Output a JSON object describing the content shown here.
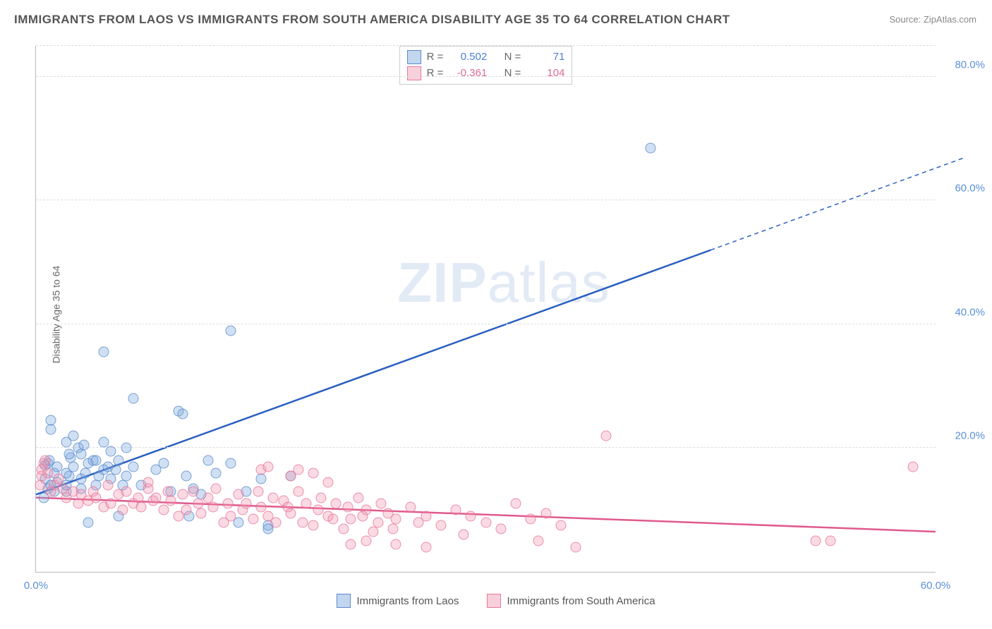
{
  "title": "IMMIGRANTS FROM LAOS VS IMMIGRANTS FROM SOUTH AMERICA DISABILITY AGE 35 TO 64 CORRELATION CHART",
  "source_prefix": "Source: ",
  "source_name": "ZipAtlas.com",
  "y_axis_label": "Disability Age 35 to 64",
  "watermark_a": "ZIP",
  "watermark_b": "atlas",
  "chart": {
    "type": "scatter",
    "xlim": [
      0,
      60
    ],
    "ylim": [
      0,
      85
    ],
    "y_ticks": [
      20,
      40,
      60,
      80
    ],
    "y_tick_labels": [
      "20.0%",
      "40.0%",
      "60.0%",
      "80.0%"
    ],
    "x_ticks": [
      0,
      60
    ],
    "x_tick_labels": [
      "0.0%",
      "60.0%"
    ],
    "background_color": "#ffffff",
    "grid_color": "#dddddd",
    "axis_color": "#bbbbbb",
    "tick_label_color": "#5b8fd6",
    "point_radius": 6.5,
    "series": [
      {
        "name": "Immigrants from Laos",
        "color_fill": "rgba(120,165,220,0.35)",
        "color_stroke": "rgba(80,130,200,0.7)",
        "trend_color": "#2a5fc0",
        "R": 0.502,
        "N": 71,
        "trend": {
          "x1": 0,
          "y1": 12.5,
          "x2": 45,
          "y2": 52,
          "dash_x1": 45,
          "dash_y1": 52,
          "dash_x2": 62,
          "dash_y2": 67
        },
        "points": [
          [
            0.5,
            12
          ],
          [
            0.8,
            13.5
          ],
          [
            0.6,
            15
          ],
          [
            0.6,
            17.2
          ],
          [
            0.8,
            17.5
          ],
          [
            0.9,
            18
          ],
          [
            1,
            14
          ],
          [
            1.2,
            13
          ],
          [
            1.4,
            14.5
          ],
          [
            1.2,
            16
          ],
          [
            1.4,
            17
          ],
          [
            1,
            23
          ],
          [
            1,
            24.5
          ],
          [
            2,
            13
          ],
          [
            2,
            14
          ],
          [
            2.2,
            15.5
          ],
          [
            2,
            16
          ],
          [
            2.5,
            17
          ],
          [
            2.3,
            18.5
          ],
          [
            2.2,
            19
          ],
          [
            2.8,
            20
          ],
          [
            2,
            21
          ],
          [
            2.5,
            22
          ],
          [
            3,
            13.5
          ],
          [
            3,
            15
          ],
          [
            3.3,
            16
          ],
          [
            3.5,
            17.5
          ],
          [
            3,
            19
          ],
          [
            3.2,
            20.5
          ],
          [
            3.8,
            18
          ],
          [
            3.5,
            8
          ],
          [
            4,
            14
          ],
          [
            4.2,
            15.5
          ],
          [
            4.5,
            16.5
          ],
          [
            4,
            18
          ],
          [
            4.8,
            17
          ],
          [
            4.5,
            21
          ],
          [
            4.5,
            35.5
          ],
          [
            5,
            15
          ],
          [
            5.3,
            16.5
          ],
          [
            5.5,
            18
          ],
          [
            5,
            19.5
          ],
          [
            5.8,
            14
          ],
          [
            5.5,
            9
          ],
          [
            6,
            15.5
          ],
          [
            6.5,
            17
          ],
          [
            6,
            20
          ],
          [
            6.5,
            28
          ],
          [
            7,
            14
          ],
          [
            8,
            16.5
          ],
          [
            8.5,
            17.5
          ],
          [
            9,
            13
          ],
          [
            9.5,
            26
          ],
          [
            9.8,
            25.5
          ],
          [
            10,
            15.5
          ],
          [
            10.5,
            13.5
          ],
          [
            10.2,
            9
          ],
          [
            11,
            12.5
          ],
          [
            11.5,
            18
          ],
          [
            12,
            16
          ],
          [
            13,
            17.5
          ],
          [
            13.5,
            8
          ],
          [
            14,
            13
          ],
          [
            15,
            15
          ],
          [
            15.5,
            7.5
          ],
          [
            15.5,
            7
          ],
          [
            17,
            15.5
          ],
          [
            13,
            39
          ],
          [
            41,
            68.5
          ]
        ]
      },
      {
        "name": "Immigrants from South America",
        "color_fill": "rgba(240,150,175,0.35)",
        "color_stroke": "rgba(230,110,150,0.7)",
        "trend_color": "#e05a8d",
        "R": -0.361,
        "N": 104,
        "trend": {
          "x1": 0,
          "y1": 12,
          "x2": 60,
          "y2": 6.5
        },
        "points": [
          [
            0.3,
            14
          ],
          [
            0.4,
            15.5
          ],
          [
            0.4,
            16.5
          ],
          [
            0.5,
            17.5
          ],
          [
            0.6,
            18
          ],
          [
            0.8,
            16
          ],
          [
            1,
            13
          ],
          [
            1.2,
            14
          ],
          [
            1.5,
            15
          ],
          [
            1.8,
            13.5
          ],
          [
            2,
            12
          ],
          [
            2.5,
            13
          ],
          [
            2.8,
            11
          ],
          [
            3,
            12.5
          ],
          [
            3.5,
            11.5
          ],
          [
            3.8,
            13
          ],
          [
            4,
            12
          ],
          [
            4.5,
            10.5
          ],
          [
            4.8,
            14
          ],
          [
            5,
            11
          ],
          [
            5.5,
            12.5
          ],
          [
            5.8,
            10
          ],
          [
            6,
            13
          ],
          [
            6.5,
            11
          ],
          [
            6.8,
            12
          ],
          [
            7,
            10.5
          ],
          [
            7.5,
            13.5
          ],
          [
            7.8,
            11.5
          ],
          [
            7.5,
            14.5
          ],
          [
            8,
            12
          ],
          [
            8.5,
            10
          ],
          [
            8.8,
            13
          ],
          [
            9,
            11.5
          ],
          [
            9.5,
            9
          ],
          [
            9.8,
            12.5
          ],
          [
            10,
            10
          ],
          [
            10.5,
            13
          ],
          [
            10.8,
            11
          ],
          [
            11,
            9.5
          ],
          [
            11.5,
            12
          ],
          [
            11.8,
            10.5
          ],
          [
            12,
            13.5
          ],
          [
            12.5,
            8
          ],
          [
            12.8,
            11
          ],
          [
            13,
            9
          ],
          [
            13.5,
            12.5
          ],
          [
            13.8,
            10
          ],
          [
            15,
            16.5
          ],
          [
            14,
            11
          ],
          [
            14.5,
            8.5
          ],
          [
            14.8,
            13
          ],
          [
            15,
            10.5
          ],
          [
            15.5,
            9
          ],
          [
            15.8,
            12
          ],
          [
            15.5,
            17
          ],
          [
            16,
            8
          ],
          [
            16.5,
            11.5
          ],
          [
            16.8,
            10.5
          ],
          [
            17,
            15.5
          ],
          [
            17.5,
            16.5
          ],
          [
            17,
            9.5
          ],
          [
            17.5,
            13
          ],
          [
            17.8,
            8
          ],
          [
            18,
            11
          ],
          [
            18.5,
            7.5
          ],
          [
            18.8,
            10
          ],
          [
            18.5,
            16
          ],
          [
            19,
            12
          ],
          [
            19.5,
            9
          ],
          [
            19.8,
            8.5
          ],
          [
            19.5,
            14.5
          ],
          [
            20,
            11
          ],
          [
            20.5,
            7
          ],
          [
            20.8,
            10.5
          ],
          [
            21,
            8.5
          ],
          [
            21.5,
            12
          ],
          [
            21.8,
            9
          ],
          [
            21,
            4.5
          ],
          [
            22,
            10
          ],
          [
            22.5,
            6.5
          ],
          [
            22.8,
            8
          ],
          [
            22,
            5
          ],
          [
            23,
            11
          ],
          [
            23.5,
            9.5
          ],
          [
            23.8,
            7
          ],
          [
            24,
            4.5
          ],
          [
            24,
            8.5
          ],
          [
            26,
            4
          ],
          [
            25,
            10.5
          ],
          [
            25.5,
            8
          ],
          [
            26,
            9
          ],
          [
            27,
            7.5
          ],
          [
            28,
            10
          ],
          [
            28.5,
            6
          ],
          [
            29,
            9
          ],
          [
            30,
            8
          ],
          [
            31,
            7
          ],
          [
            32,
            11
          ],
          [
            33,
            8.5
          ],
          [
            33.5,
            5
          ],
          [
            34,
            9.5
          ],
          [
            35,
            7.5
          ],
          [
            36,
            4
          ],
          [
            38,
            22
          ],
          [
            52,
            5
          ],
          [
            53,
            5
          ],
          [
            58.5,
            17
          ]
        ]
      }
    ]
  },
  "stats_labels": {
    "R": "R =",
    "N": "N ="
  },
  "stats_display": [
    {
      "swatch": "sw-blue",
      "R": "0.502",
      "N": "71",
      "val_class": "stat-val-blue"
    },
    {
      "swatch": "sw-pink",
      "R": "-0.361",
      "N": "104",
      "val_class": "stat-val-pink"
    }
  ],
  "legend": [
    {
      "swatch": "sw-blue",
      "label": "Immigrants from Laos"
    },
    {
      "swatch": "sw-pink",
      "label": "Immigrants from South America"
    }
  ]
}
